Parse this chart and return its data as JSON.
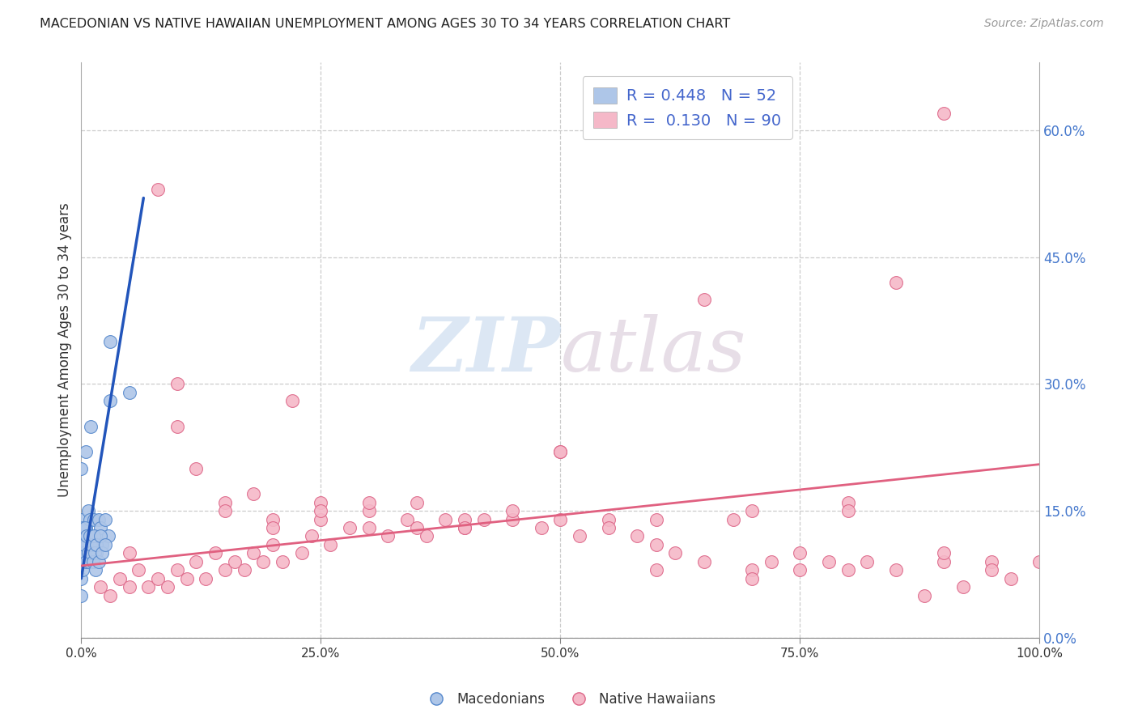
{
  "title": "MACEDONIAN VS NATIVE HAWAIIAN UNEMPLOYMENT AMONG AGES 30 TO 34 YEARS CORRELATION CHART",
  "source": "Source: ZipAtlas.com",
  "ylabel": "Unemployment Among Ages 30 to 34 years",
  "mac_R": 0.448,
  "mac_N": 52,
  "haw_R": 0.13,
  "haw_N": 90,
  "mac_color": "#aec6e8",
  "mac_edge_color": "#5588cc",
  "haw_color": "#f5b8c8",
  "haw_edge_color": "#dd6688",
  "mac_line_color": "#2255bb",
  "haw_line_color": "#e06080",
  "background_color": "#ffffff",
  "grid_color": "#cccccc",
  "watermark_zip": "ZIP",
  "watermark_atlas": "atlas",
  "xlim": [
    0.0,
    1.0
  ],
  "ylim": [
    0.0,
    0.68
  ],
  "xtick_vals": [
    0.0,
    0.25,
    0.5,
    0.75,
    1.0
  ],
  "xtick_labels": [
    "0.0%",
    "25.0%",
    "50.0%",
    "75.0%",
    "100.0%"
  ],
  "ytick_vals": [
    0.0,
    0.15,
    0.3,
    0.45,
    0.6
  ],
  "ytick_labels": [
    "0.0%",
    "15.0%",
    "30.0%",
    "45.0%",
    "60.0%"
  ],
  "legend_R_label": "R = ",
  "legend_N_label": "N = ",
  "mac_R_str": "0.448",
  "haw_R_str": "0.130",
  "mac_N_str": "52",
  "haw_N_str": "90",
  "mac_scatter_x": [
    0.0,
    0.0,
    0.0,
    0.0,
    0.0,
    0.0,
    0.0,
    0.001,
    0.001,
    0.002,
    0.003,
    0.004,
    0.005,
    0.005,
    0.006,
    0.007,
    0.008,
    0.009,
    0.01,
    0.01,
    0.012,
    0.013,
    0.015,
    0.016,
    0.018,
    0.02,
    0.022,
    0.025,
    0.028,
    0.03,
    0.001,
    0.002,
    0.003,
    0.004,
    0.005,
    0.006,
    0.007,
    0.008,
    0.009,
    0.01,
    0.011,
    0.012,
    0.013,
    0.014,
    0.015,
    0.016,
    0.018,
    0.02,
    0.022,
    0.025,
    0.03,
    0.05
  ],
  "mac_scatter_y": [
    0.05,
    0.07,
    0.09,
    0.1,
    0.12,
    0.14,
    0.2,
    0.1,
    0.13,
    0.11,
    0.12,
    0.1,
    0.13,
    0.22,
    0.11,
    0.15,
    0.1,
    0.14,
    0.12,
    0.25,
    0.11,
    0.14,
    0.12,
    0.1,
    0.14,
    0.13,
    0.11,
    0.14,
    0.12,
    0.28,
    0.08,
    0.1,
    0.11,
    0.13,
    0.09,
    0.12,
    0.1,
    0.09,
    0.12,
    0.1,
    0.11,
    0.09,
    0.12,
    0.1,
    0.08,
    0.11,
    0.09,
    0.12,
    0.1,
    0.11,
    0.35,
    0.29
  ],
  "haw_scatter_x": [
    0.02,
    0.03,
    0.04,
    0.05,
    0.06,
    0.07,
    0.08,
    0.09,
    0.1,
    0.11,
    0.12,
    0.13,
    0.14,
    0.15,
    0.16,
    0.17,
    0.18,
    0.19,
    0.2,
    0.21,
    0.22,
    0.23,
    0.24,
    0.25,
    0.26,
    0.28,
    0.3,
    0.32,
    0.34,
    0.36,
    0.38,
    0.4,
    0.42,
    0.45,
    0.48,
    0.5,
    0.52,
    0.55,
    0.58,
    0.6,
    0.62,
    0.65,
    0.68,
    0.7,
    0.72,
    0.75,
    0.78,
    0.8,
    0.82,
    0.85,
    0.88,
    0.9,
    0.92,
    0.95,
    0.97,
    1.0,
    0.1,
    0.12,
    0.15,
    0.18,
    0.2,
    0.25,
    0.3,
    0.35,
    0.4,
    0.5,
    0.6,
    0.7,
    0.8,
    0.9,
    0.05,
    0.08,
    0.1,
    0.15,
    0.2,
    0.25,
    0.3,
    0.35,
    0.4,
    0.45,
    0.5,
    0.55,
    0.6,
    0.65,
    0.7,
    0.75,
    0.8,
    0.85,
    0.9,
    0.95
  ],
  "haw_scatter_y": [
    0.06,
    0.05,
    0.07,
    0.06,
    0.08,
    0.06,
    0.07,
    0.06,
    0.08,
    0.07,
    0.09,
    0.07,
    0.1,
    0.08,
    0.09,
    0.08,
    0.1,
    0.09,
    0.11,
    0.09,
    0.28,
    0.1,
    0.12,
    0.14,
    0.11,
    0.13,
    0.15,
    0.12,
    0.14,
    0.12,
    0.14,
    0.13,
    0.14,
    0.14,
    0.13,
    0.22,
    0.12,
    0.14,
    0.12,
    0.08,
    0.1,
    0.09,
    0.14,
    0.08,
    0.09,
    0.08,
    0.09,
    0.08,
    0.09,
    0.08,
    0.05,
    0.09,
    0.06,
    0.09,
    0.07,
    0.09,
    0.25,
    0.2,
    0.16,
    0.17,
    0.14,
    0.16,
    0.16,
    0.13,
    0.14,
    0.14,
    0.11,
    0.07,
    0.16,
    0.1,
    0.1,
    0.53,
    0.3,
    0.15,
    0.13,
    0.15,
    0.13,
    0.16,
    0.13,
    0.15,
    0.22,
    0.13,
    0.14,
    0.4,
    0.15,
    0.1,
    0.15,
    0.42,
    0.62,
    0.08
  ],
  "mac_trendline_x": [
    0.0,
    0.065
  ],
  "mac_trendline_y": [
    0.07,
    0.52
  ],
  "haw_trendline_x": [
    0.0,
    1.0
  ],
  "haw_trendline_y": [
    0.085,
    0.205
  ]
}
